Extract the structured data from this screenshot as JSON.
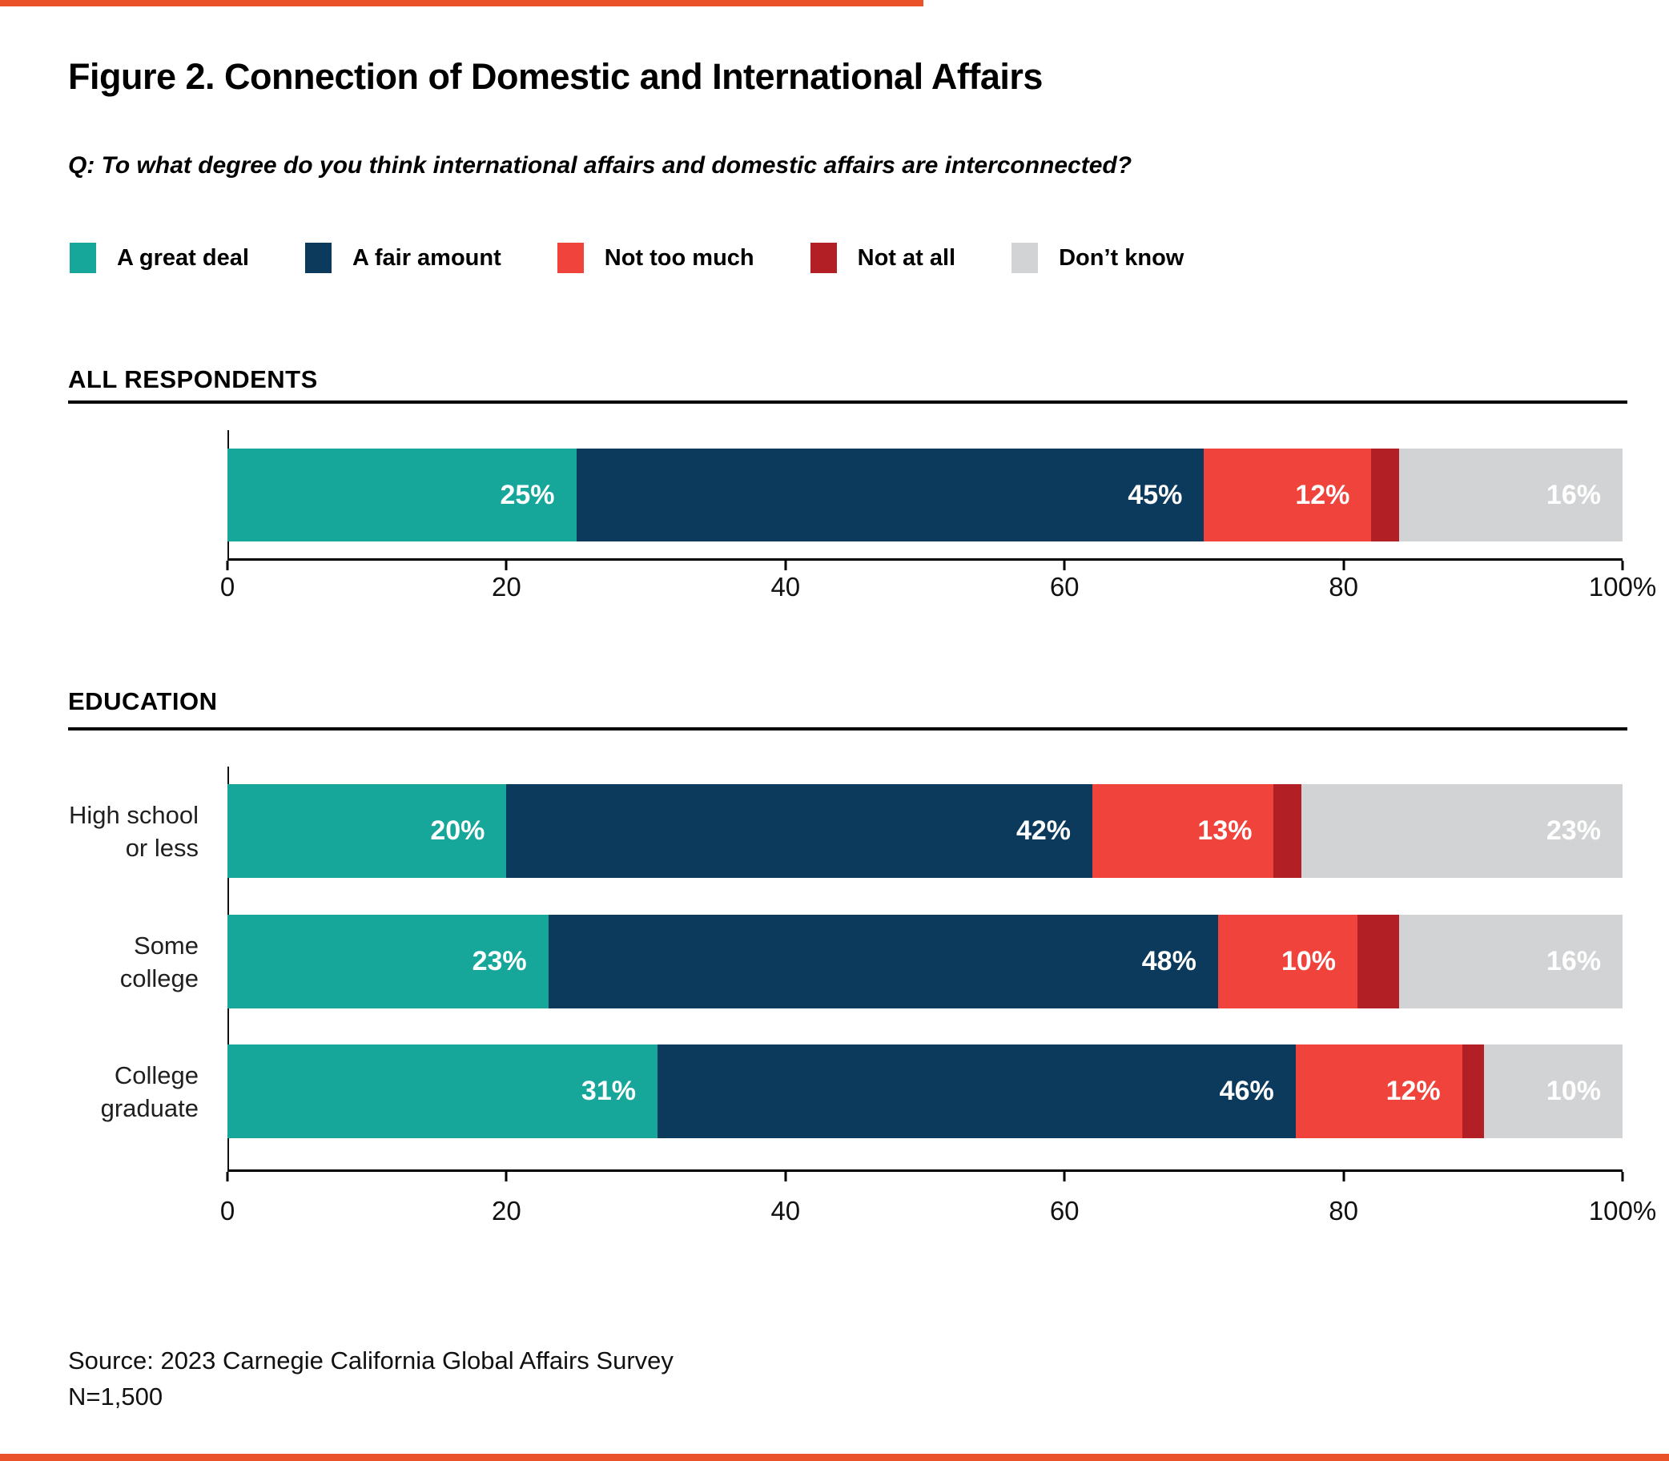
{
  "page": {
    "source": "Source: 2023 Carnegie California Global Affairs Survey",
    "sample_size": "N=1,500",
    "accent_color": "#EA5329"
  },
  "chart_data": {
    "type": "bar",
    "stacked": true,
    "orientation": "horizontal",
    "title": "Figure 2. Connection of Domestic and International Affairs",
    "question": "Q: To what degree do you think international affairs and domestic affairs are interconnected?",
    "unit": "percent",
    "xlim": [
      0,
      100
    ],
    "x_tick_positions": [
      0,
      20,
      40,
      60,
      80,
      100
    ],
    "x_tick_labels": [
      "0",
      "20",
      "40",
      "60",
      "80",
      "100%"
    ],
    "legend_position": "top",
    "grid": false,
    "series": [
      {
        "name": "A great deal",
        "color": "#17A79A"
      },
      {
        "name": "A fair amount",
        "color": "#0C3A5D"
      },
      {
        "name": "Not too much",
        "color": "#EF433C"
      },
      {
        "name": "Not at all",
        "color": "#B22025"
      },
      {
        "name": "Don’t know",
        "color": "#D2D3D4"
      }
    ],
    "sections": [
      {
        "heading": "ALL RESPONDENTS",
        "rows": [
          {
            "category": "",
            "values": [
              25,
              45,
              12,
              2,
              16
            ],
            "value_labels": [
              "25%",
              "45%",
              "12%",
              "",
              "16%"
            ]
          }
        ]
      },
      {
        "heading": "EDUCATION",
        "rows": [
          {
            "category": "High school\nor less",
            "values": [
              20,
              42,
              13,
              2,
              23
            ],
            "value_labels": [
              "20%",
              "42%",
              "13%",
              "",
              "23%"
            ]
          },
          {
            "category": "Some college",
            "values": [
              23,
              48,
              10,
              3,
              16
            ],
            "value_labels": [
              "23%",
              "48%",
              "10%",
              "",
              "16%"
            ]
          },
          {
            "category": "College\ngraduate",
            "values": [
              31,
              46,
              12,
              1,
              10
            ],
            "value_labels": [
              "31%",
              "46%",
              "12%",
              "",
              "10%"
            ]
          }
        ]
      }
    ]
  }
}
